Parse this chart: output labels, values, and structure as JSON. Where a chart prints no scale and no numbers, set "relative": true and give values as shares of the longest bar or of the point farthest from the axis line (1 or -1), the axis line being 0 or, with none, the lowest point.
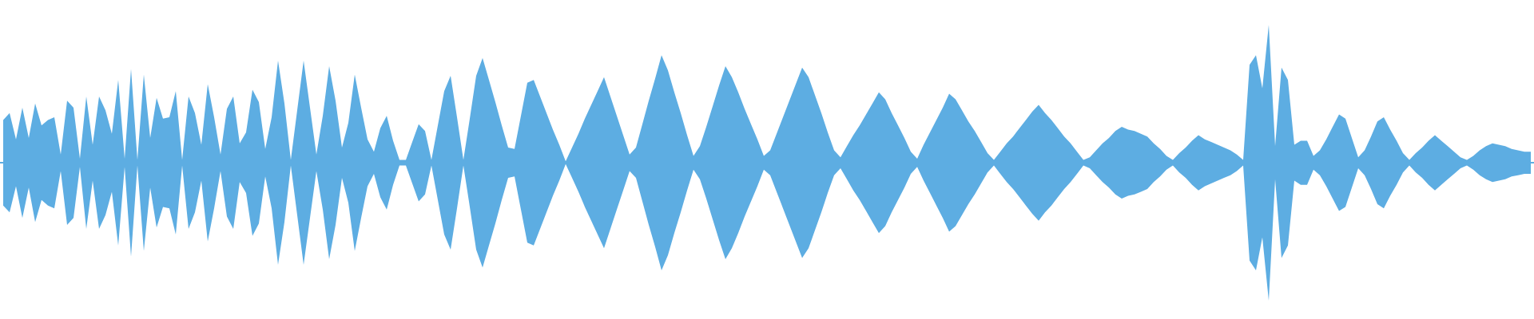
{
  "chart_data": {
    "type": "area",
    "relative": true,
    "ref_lines": [
      {
        "axis": "y",
        "value": 0,
        "color": "#5dade2",
        "line_style": "solid"
      }
    ],
    "categories": [
      null,
      null,
      null,
      null,
      null,
      null,
      null,
      null,
      null,
      null,
      null,
      null,
      null,
      null,
      null,
      null,
      null,
      null,
      null,
      null,
      null,
      null,
      null,
      null,
      null,
      null,
      null,
      null,
      null,
      null,
      null,
      null,
      null,
      null,
      null,
      null,
      null,
      null,
      null,
      null,
      null,
      null,
      null,
      null,
      null,
      null,
      null,
      null,
      null,
      null,
      null,
      null,
      null,
      null,
      null,
      null,
      null,
      null,
      null,
      null,
      null,
      null,
      null,
      null,
      null,
      null,
      null,
      null,
      null,
      null,
      null,
      null,
      null,
      null,
      null,
      null,
      null,
      null,
      null,
      null,
      null,
      null,
      null,
      null,
      null,
      null,
      null,
      null,
      null,
      null,
      null,
      null,
      null,
      null,
      null,
      null,
      null,
      null,
      null,
      null,
      null,
      null,
      null,
      null,
      null,
      null,
      null,
      null,
      null,
      null,
      null,
      null,
      null,
      null,
      null,
      null,
      null,
      null,
      null,
      null,
      null,
      null,
      null,
      null,
      null,
      null,
      null,
      null,
      null,
      null,
      null,
      null,
      null,
      null,
      null,
      null,
      null,
      null,
      null,
      null,
      null,
      null,
      null,
      null,
      null,
      null,
      null,
      null,
      null,
      null,
      null,
      null,
      null,
      null,
      null,
      null,
      null,
      null,
      null,
      null,
      null,
      null,
      null,
      null,
      null,
      null,
      null,
      null,
      null,
      null,
      null,
      null,
      null,
      null,
      null,
      null,
      null,
      null,
      null,
      null,
      null,
      null,
      null,
      null,
      null,
      null,
      null,
      null,
      null,
      null,
      null,
      null,
      null,
      null,
      null,
      null,
      null,
      null,
      null,
      null,
      null,
      null,
      null,
      null,
      null,
      null,
      null,
      null,
      null,
      null,
      null,
      null,
      null,
      null,
      null,
      null,
      null,
      null,
      null,
      null,
      null,
      null,
      null,
      null,
      null,
      null,
      null,
      null,
      null,
      null,
      null,
      null,
      null,
      null,
      null,
      null,
      null,
      null,
      null,
      null
    ],
    "series": [
      {
        "color": "#5dade2",
        "values": [
          0.31,
          0.36,
          0.17,
          0.4,
          0.18,
          0.43,
          0.27,
          0.31,
          0.33,
          0.06,
          0.45,
          0.4,
          0.03,
          0.48,
          0.13,
          0.48,
          0.38,
          0.21,
          0.6,
          0.03,
          0.68,
          0.02,
          0.64,
          0.18,
          0.47,
          0.32,
          0.33,
          0.52,
          0.02,
          0.48,
          0.36,
          0.13,
          0.57,
          0.33,
          0.06,
          0.39,
          0.48,
          0.14,
          0.22,
          0.53,
          0.44,
          0.1,
          0.33,
          0.74,
          0.43,
          0.02,
          0.38,
          0.74,
          0.4,
          0.06,
          0.34,
          0.7,
          0.45,
          0.11,
          0.29,
          0.64,
          0.4,
          0.17,
          0.08,
          0.25,
          0.34,
          0.16,
          0.02,
          0.02,
          0.15,
          0.28,
          0.23,
          0.02,
          0.27,
          0.52,
          0.63,
          0.33,
          0.02,
          0.32,
          0.63,
          0.76,
          0.6,
          0.44,
          0.27,
          0.11,
          0.1,
          0.34,
          0.58,
          0.6,
          0.48,
          0.36,
          0.24,
          0.13,
          0.01,
          0.11,
          0.21,
          0.32,
          0.42,
          0.52,
          0.62,
          0.48,
          0.34,
          0.2,
          0.06,
          0.11,
          0.28,
          0.45,
          0.61,
          0.78,
          0.67,
          0.51,
          0.36,
          0.2,
          0.05,
          0.12,
          0.26,
          0.41,
          0.56,
          0.7,
          0.62,
          0.51,
          0.39,
          0.28,
          0.17,
          0.05,
          0.09,
          0.21,
          0.33,
          0.45,
          0.57,
          0.69,
          0.62,
          0.49,
          0.36,
          0.22,
          0.09,
          0.04,
          0.12,
          0.2,
          0.27,
          0.35,
          0.43,
          0.51,
          0.46,
          0.36,
          0.27,
          0.18,
          0.08,
          0.03,
          0.13,
          0.22,
          0.31,
          0.4,
          0.5,
          0.46,
          0.38,
          0.3,
          0.23,
          0.15,
          0.07,
          0.02,
          0.08,
          0.14,
          0.19,
          0.25,
          0.31,
          0.37,
          0.42,
          0.36,
          0.31,
          0.25,
          0.19,
          0.14,
          0.08,
          0.02,
          0.04,
          0.09,
          0.14,
          0.18,
          0.23,
          0.26,
          0.24,
          0.23,
          0.21,
          0.19,
          0.14,
          0.1,
          0.05,
          0.02,
          0.07,
          0.11,
          0.16,
          0.2,
          0.17,
          0.15,
          0.13,
          0.11,
          0.09,
          0.06,
          0.02,
          0.71,
          0.78,
          0.54,
          1,
          0.12,
          0.69,
          0.6,
          0.13,
          0.16,
          0.16,
          0.05,
          0.09,
          0.17,
          0.26,
          0.35,
          0.32,
          0.18,
          0.04,
          0.09,
          0.19,
          0.3,
          0.33,
          0.24,
          0.16,
          0.07,
          0.02,
          0.07,
          0.11,
          0.16,
          0.2,
          0.16,
          0.12,
          0.08,
          0.04,
          0.02,
          0.05,
          0.09,
          0.12,
          0.14,
          0.13,
          0.12,
          0.1,
          0.09,
          0.08,
          0.08
        ]
      },
      {
        "color": "#5dade2",
        "values": [
          -0.31,
          -0.36,
          -0.17,
          -0.4,
          -0.18,
          -0.43,
          -0.27,
          -0.31,
          -0.33,
          -0.06,
          -0.45,
          -0.4,
          -0.03,
          -0.48,
          -0.13,
          -0.48,
          -0.38,
          -0.21,
          -0.6,
          -0.03,
          -0.68,
          -0.02,
          -0.64,
          -0.18,
          -0.47,
          -0.32,
          -0.33,
          -0.52,
          -0.02,
          -0.48,
          -0.36,
          -0.13,
          -0.57,
          -0.33,
          -0.06,
          -0.39,
          -0.48,
          -0.14,
          -0.22,
          -0.53,
          -0.44,
          -0.1,
          -0.33,
          -0.74,
          -0.43,
          -0.02,
          -0.38,
          -0.74,
          -0.4,
          -0.06,
          -0.34,
          -0.7,
          -0.45,
          -0.11,
          -0.29,
          -0.64,
          -0.4,
          -0.17,
          -0.08,
          -0.25,
          -0.34,
          -0.16,
          -0.02,
          -0.02,
          -0.15,
          -0.28,
          -0.23,
          -0.02,
          -0.27,
          -0.52,
          -0.63,
          -0.33,
          -0.02,
          -0.32,
          -0.63,
          -0.76,
          -0.6,
          -0.44,
          -0.27,
          -0.11,
          -0.1,
          -0.34,
          -0.58,
          -0.6,
          -0.48,
          -0.36,
          -0.24,
          -0.13,
          -0.01,
          -0.11,
          -0.21,
          -0.32,
          -0.42,
          -0.52,
          -0.62,
          -0.48,
          -0.34,
          -0.2,
          -0.06,
          -0.11,
          -0.28,
          -0.45,
          -0.61,
          -0.78,
          -0.67,
          -0.51,
          -0.36,
          -0.2,
          -0.05,
          -0.12,
          -0.26,
          -0.41,
          -0.56,
          -0.7,
          -0.62,
          -0.51,
          -0.39,
          -0.28,
          -0.17,
          -0.05,
          -0.09,
          -0.21,
          -0.33,
          -0.45,
          -0.57,
          -0.69,
          -0.62,
          -0.49,
          -0.36,
          -0.22,
          -0.09,
          -0.04,
          -0.12,
          -0.2,
          -0.27,
          -0.35,
          -0.43,
          -0.51,
          -0.46,
          -0.36,
          -0.27,
          -0.18,
          -0.08,
          -0.03,
          -0.13,
          -0.22,
          -0.31,
          -0.4,
          -0.5,
          -0.46,
          -0.38,
          -0.3,
          -0.23,
          -0.15,
          -0.07,
          -0.02,
          -0.08,
          -0.14,
          -0.19,
          -0.25,
          -0.31,
          -0.37,
          -0.42,
          -0.36,
          -0.31,
          -0.25,
          -0.19,
          -0.14,
          -0.08,
          -0.02,
          -0.04,
          -0.09,
          -0.14,
          -0.18,
          -0.23,
          -0.26,
          -0.24,
          -0.23,
          -0.21,
          -0.19,
          -0.14,
          -0.1,
          -0.05,
          -0.02,
          -0.07,
          -0.11,
          -0.16,
          -0.2,
          -0.17,
          -0.15,
          -0.13,
          -0.11,
          -0.09,
          -0.06,
          -0.02,
          -0.71,
          -0.78,
          -0.54,
          -1,
          -0.12,
          -0.69,
          -0.6,
          -0.13,
          -0.16,
          -0.16,
          -0.05,
          -0.09,
          -0.17,
          -0.26,
          -0.35,
          -0.32,
          -0.18,
          -0.04,
          -0.09,
          -0.19,
          -0.3,
          -0.33,
          -0.24,
          -0.16,
          -0.07,
          -0.02,
          -0.07,
          -0.11,
          -0.16,
          -0.2,
          -0.16,
          -0.12,
          -0.08,
          -0.04,
          -0.02,
          -0.05,
          -0.09,
          -0.12,
          -0.14,
          -0.13,
          -0.12,
          -0.1,
          -0.09,
          -0.08,
          -0.08
        ]
      }
    ]
  }
}
